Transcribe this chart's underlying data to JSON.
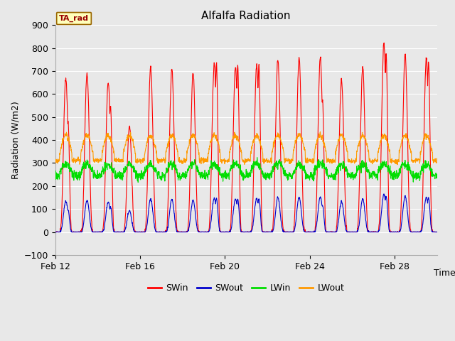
{
  "title": "Alfalfa Radiation",
  "ylabel": "Radiation (W/m2)",
  "xlabel": "Time",
  "annotation": "TA_rad",
  "ylim": [
    -100,
    900
  ],
  "yticks": [
    -100,
    0,
    100,
    200,
    300,
    400,
    500,
    600,
    700,
    800,
    900
  ],
  "xtick_labels": [
    "Feb 12",
    "Feb 16",
    "Feb 20",
    "Feb 24",
    "Feb 28"
  ],
  "xtick_positions": [
    0,
    4,
    8,
    12,
    16
  ],
  "colors": {
    "SWin": "#ff0000",
    "SWout": "#0000cc",
    "LWin": "#00dd00",
    "LWout": "#ff9900"
  },
  "fig_bg_color": "#e8e8e8",
  "plot_bg_color": "#e8e8e8",
  "title_fontsize": 11,
  "axis_fontsize": 9,
  "n_days": 18,
  "sw_peaks": [
    670,
    690,
    650,
    460,
    720,
    710,
    690,
    735,
    720,
    725,
    750,
    755,
    760,
    660,
    715,
    820,
    775,
    750
  ],
  "sw_peaks2": [
    480,
    0,
    550,
    0,
    0,
    0,
    0,
    730,
    720,
    730,
    0,
    0,
    575,
    0,
    0,
    775,
    0,
    740
  ]
}
